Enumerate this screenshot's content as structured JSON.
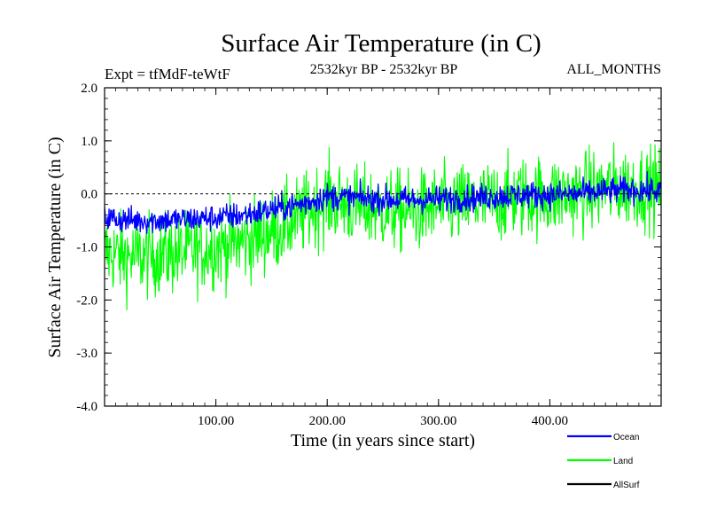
{
  "chart_data": {
    "type": "line",
    "title": "Surface Air Temperature (in C)",
    "subtitle_left": "Expt = tfMdF-teWtF",
    "subtitle_center": "2532kyr BP - 2532kyr BP",
    "subtitle_right": "ALL_MONTHS",
    "xlabel": "Time (in years since start)",
    "ylabel": "Surface Air Temperature (in C)",
    "xlim": [
      0,
      500
    ],
    "ylim": [
      -4.0,
      2.0
    ],
    "x_ticks": [
      100,
      200,
      300,
      400
    ],
    "x_tick_labels": [
      "100.00",
      "200.00",
      "300.00",
      "400.00"
    ],
    "y_ticks": [
      -4.0,
      -3.0,
      -2.0,
      -1.0,
      0.0,
      1.0,
      2.0
    ],
    "y_tick_labels": [
      "-4.0",
      "-3.0",
      "-2.0",
      "-1.0",
      "0.0",
      "1.0",
      "2.0"
    ],
    "reference_line": 0.0,
    "series": [
      {
        "name": "Ocean",
        "color": "#0000ff",
        "x": [
          0,
          25,
          50,
          75,
          100,
          125,
          150,
          175,
          200,
          225,
          250,
          275,
          300,
          325,
          350,
          375,
          400,
          425,
          450,
          475,
          500
        ],
        "mean": [
          -0.45,
          -0.5,
          -0.5,
          -0.48,
          -0.45,
          -0.4,
          -0.3,
          -0.2,
          -0.05,
          -0.08,
          -0.1,
          -0.12,
          -0.1,
          -0.08,
          -0.05,
          -0.02,
          -0.02,
          0.0,
          0.05,
          0.08,
          0.05
        ],
        "noise_amplitude": 0.18
      },
      {
        "name": "Land",
        "color": "#00ff00",
        "x": [
          0,
          25,
          50,
          75,
          100,
          125,
          150,
          175,
          200,
          225,
          250,
          275,
          300,
          325,
          350,
          375,
          400,
          425,
          450,
          475,
          500
        ],
        "mean": [
          -1.1,
          -1.2,
          -1.15,
          -1.1,
          -1.0,
          -0.9,
          -0.7,
          -0.45,
          -0.1,
          -0.25,
          -0.3,
          -0.35,
          -0.25,
          -0.2,
          -0.15,
          -0.05,
          -0.05,
          0.0,
          0.1,
          0.15,
          0.1
        ],
        "noise_amplitude": 0.55
      },
      {
        "name": "AllSurf",
        "color": "#000000",
        "x": [],
        "mean": [],
        "noise_amplitude": 0
      }
    ],
    "legend_position": "bottom-right"
  }
}
